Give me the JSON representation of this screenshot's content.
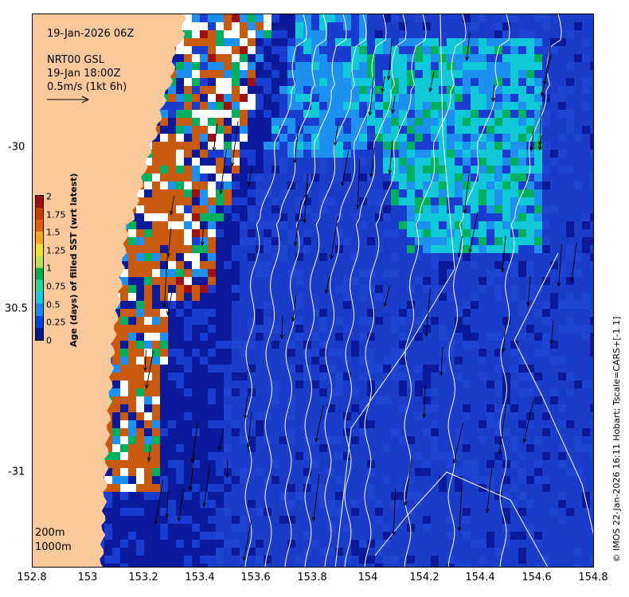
{
  "map": {
    "timestamp": "19-Jan-2026 06Z",
    "product_line": "NRT00 GSL",
    "product_time": "19-Jan 18:00Z",
    "arrow_scale": "0.5m/s (1kt 6h)",
    "contour_label_200": "200m",
    "contour_label_1000": "1000m",
    "credit": "© IMOS 22-Jan-2026 16:11 Hobart; Tscale=CARS+[-1 1]",
    "x_ticks": [
      "152.8",
      "153",
      "153.2",
      "153.4",
      "153.6",
      "153.8",
      "154",
      "154.2",
      "154.4",
      "154.6",
      "154.8"
    ],
    "y_ticks": [
      "-30",
      "30.5",
      "-31"
    ],
    "colors": {
      "land": "#f9c89b",
      "ocean_base": "#1a3cc8"
    }
  },
  "colorbar": {
    "title": "Age (days) of filled SST (wrt latest)",
    "ticks": [
      "2",
      "1.75",
      "1.5",
      "1.25",
      "1",
      "0.75",
      "0.5",
      "0.25",
      "0"
    ],
    "colors": [
      "#001a8c",
      "#0044d8",
      "#1e88f0",
      "#1ec8e0",
      "#2ad49a",
      "#00b050",
      "#b8e050",
      "#f0e030",
      "#f0a820",
      "#e06010",
      "#c84000",
      "#a01010"
    ]
  }
}
